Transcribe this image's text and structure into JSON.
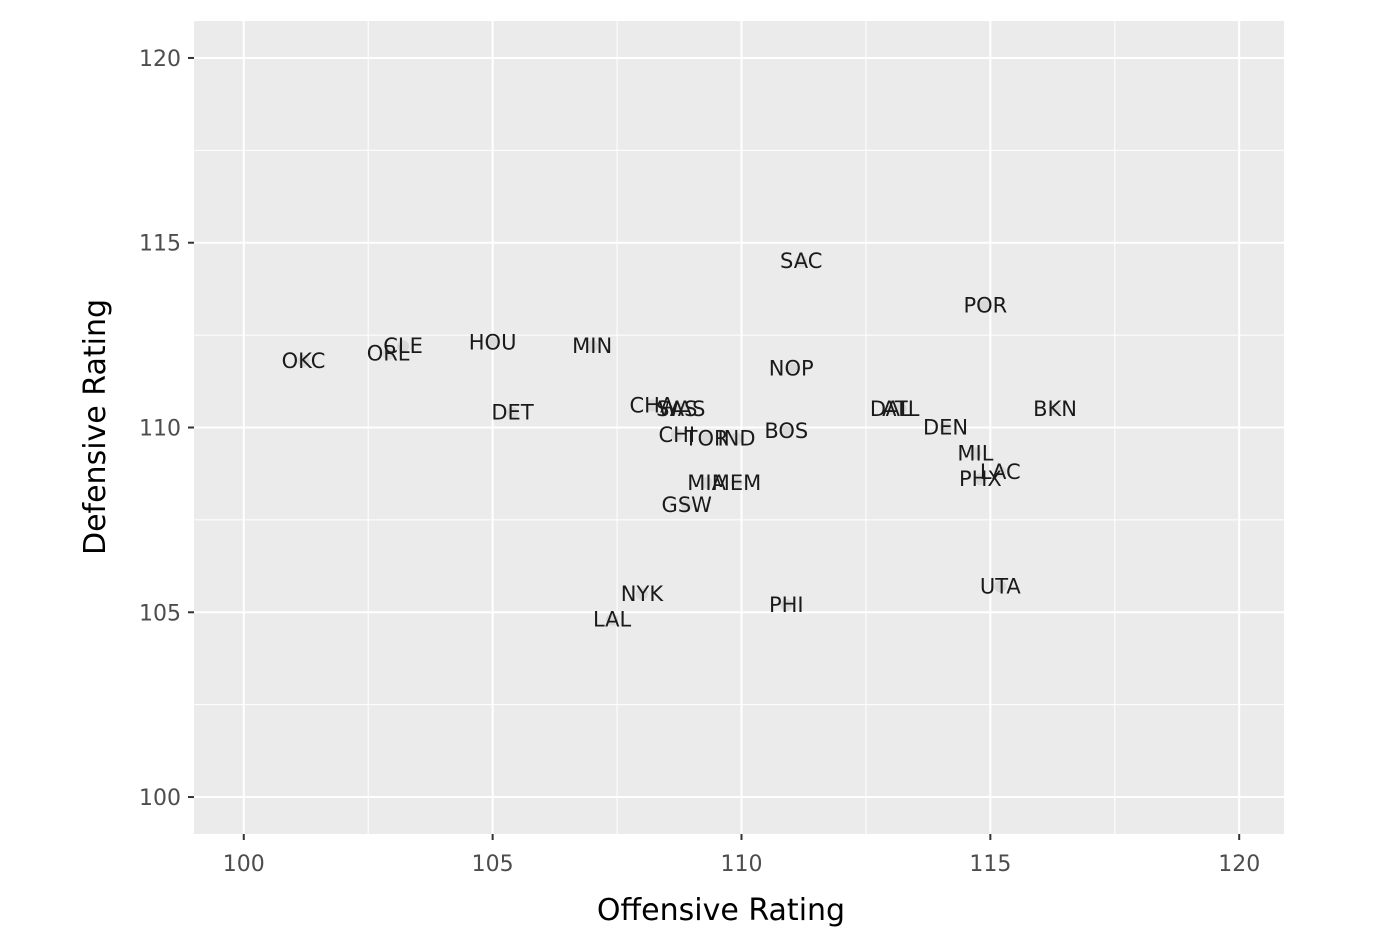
{
  "chart_data": {
    "type": "scatter",
    "xlabel": "Offensive Rating",
    "ylabel": "Defensive Rating",
    "xlim": [
      99,
      120.9
    ],
    "ylim": [
      99,
      121
    ],
    "x_ticks": [
      100,
      105,
      110,
      115,
      120
    ],
    "y_ticks": [
      100,
      105,
      110,
      115,
      120
    ],
    "x_tick_labels": [
      "100",
      "105",
      "110",
      "115",
      "120"
    ],
    "y_tick_labels": [
      "100",
      "105",
      "110",
      "115",
      "120"
    ],
    "grid": true,
    "colors": {
      "panel": "#ebebeb",
      "grid": "#ffffff",
      "point": "#d9d9d9",
      "text": "#1a1a1a",
      "tick_text": "#4d4d4d"
    },
    "points": [
      {
        "label": "OKC",
        "x": 101.2,
        "y": 111.8
      },
      {
        "label": "ORL",
        "x": 102.9,
        "y": 112.0
      },
      {
        "label": "CLE",
        "x": 103.2,
        "y": 112.2
      },
      {
        "label": "HOU",
        "x": 105.0,
        "y": 112.3
      },
      {
        "label": "MIN",
        "x": 107.0,
        "y": 112.2
      },
      {
        "label": "DET",
        "x": 105.4,
        "y": 110.4
      },
      {
        "label": "CHA",
        "x": 108.2,
        "y": 110.6
      },
      {
        "label": "WAS",
        "x": 108.8,
        "y": 110.5
      },
      {
        "label": "SAS",
        "x": 108.7,
        "y": 110.5
      },
      {
        "label": "CHI",
        "x": 108.7,
        "y": 109.8
      },
      {
        "label": "TOR",
        "x": 109.3,
        "y": 109.7
      },
      {
        "label": "IND",
        "x": 109.9,
        "y": 109.7
      },
      {
        "label": "BOS",
        "x": 110.9,
        "y": 109.9
      },
      {
        "label": "NOP",
        "x": 111.0,
        "y": 111.6
      },
      {
        "label": "SAC",
        "x": 111.2,
        "y": 114.5
      },
      {
        "label": "MIA",
        "x": 109.3,
        "y": 108.5
      },
      {
        "label": "MEM",
        "x": 109.9,
        "y": 108.5
      },
      {
        "label": "GSW",
        "x": 108.9,
        "y": 107.9
      },
      {
        "label": "NYK",
        "x": 108.0,
        "y": 105.5
      },
      {
        "label": "LAL",
        "x": 107.4,
        "y": 104.8
      },
      {
        "label": "PHI",
        "x": 110.9,
        "y": 105.2
      },
      {
        "label": "DAL",
        "x": 113.0,
        "y": 110.5
      },
      {
        "label": "ATL",
        "x": 113.2,
        "y": 110.5
      },
      {
        "label": "DEN",
        "x": 114.1,
        "y": 110.0
      },
      {
        "label": "POR",
        "x": 114.9,
        "y": 113.3
      },
      {
        "label": "BKN",
        "x": 116.3,
        "y": 110.5
      },
      {
        "label": "MIL",
        "x": 114.7,
        "y": 109.3
      },
      {
        "label": "LAC",
        "x": 115.2,
        "y": 108.8
      },
      {
        "label": "PHX",
        "x": 114.8,
        "y": 108.6
      },
      {
        "label": "UTA",
        "x": 115.2,
        "y": 105.7
      }
    ]
  }
}
